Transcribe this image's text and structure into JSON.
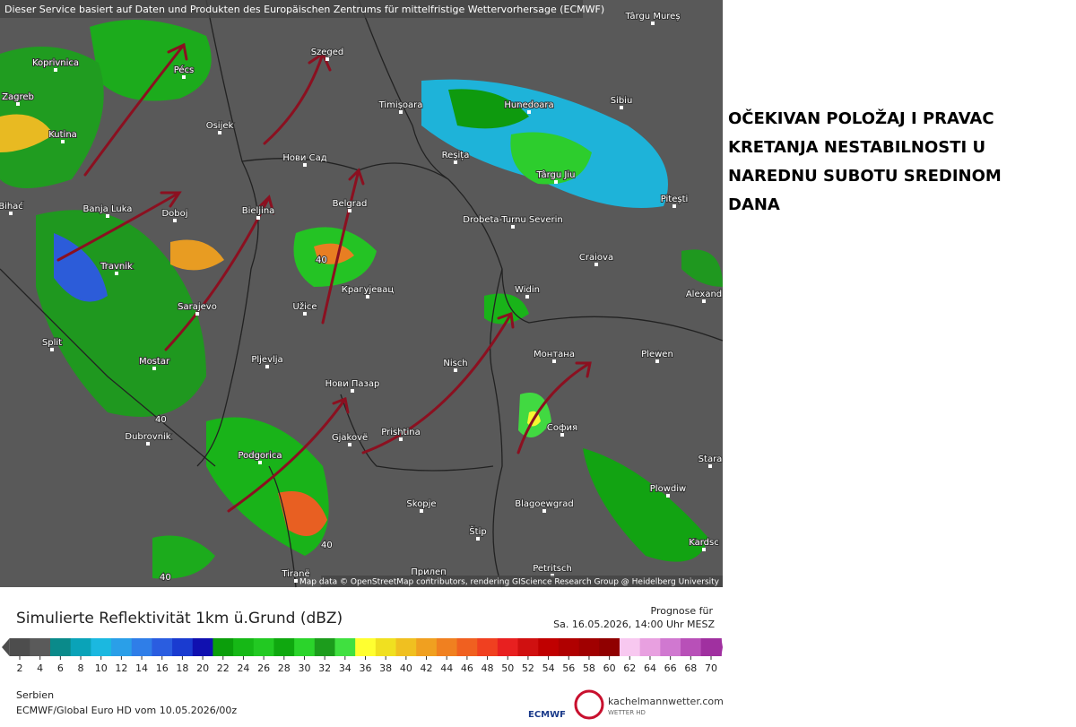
{
  "header": {
    "notice": "Dieser Service basiert auf Daten und Produkten des Europäischen Zentrums für mittelfristige Wettervorhersage (ECMWF)",
    "attribution": "Map data © OpenStreetMap contributors, rendering GIScience Research Group @ Heidelberg University"
  },
  "map": {
    "cities": [
      "Târgu Mureș",
      "Koprivnica",
      "Pécs",
      "Szeged",
      "Zagreb",
      "Timișoara",
      "Hunedoara",
      "Sibiu",
      "Kutina",
      "Osijek",
      "Нови Сад",
      "Reșița",
      "Târgu Jiu",
      "Pitești",
      "Bihać",
      "Banja Luka",
      "Doboj",
      "Bieljina",
      "Belgrad",
      "Drobeta-Turnu Severin",
      "Craiova",
      "Travnik",
      "Крагујевац",
      "Widin",
      "Alexand",
      "Sarajevo",
      "Užice",
      "Split",
      "Mostar",
      "Pljevlja",
      "Nisch",
      "Монтана",
      "Plewen",
      "Нови Пазар",
      "Dubrovnik",
      "Prishtina",
      "София",
      "Podgorica",
      "Gjakovë",
      "Stara",
      "Plowdiw",
      "Skopje",
      "Blagoewgrad",
      "Štip",
      "Kardsc",
      "Tiranë",
      "Прилеп",
      "Petritsch"
    ],
    "contour_labels": [
      40,
      40,
      40,
      40
    ]
  },
  "annotation": [
    "OČEKIVAN POLOŽAJ I PRAVAC",
    "KRETANJA NESTABILNOSTI U",
    "NAREDNU SUBOTU SREDINOM",
    "DANA"
  ],
  "legend": {
    "title": "Simulierte Reflektivität 1km ü.Grund (dBZ)",
    "forecast_label": "Prognose für",
    "forecast_time": "Sa. 16.05.2026, 14:00 Uhr MESZ",
    "ticks": [
      2,
      4,
      6,
      8,
      10,
      12,
      14,
      16,
      18,
      20,
      22,
      24,
      26,
      28,
      30,
      32,
      34,
      36,
      38,
      40,
      42,
      44,
      46,
      48,
      50,
      52,
      54,
      56,
      58,
      60,
      62,
      64,
      66,
      68,
      70
    ],
    "colors": [
      "#4d4d4d",
      "#5a5a5a",
      "#0a8a8a",
      "#0aa3b8",
      "#1bb8e0",
      "#2a9fe8",
      "#2f7ee8",
      "#2a5de0",
      "#1a3bd0",
      "#1010b0",
      "#0b9e0b",
      "#16b816",
      "#22c922",
      "#0fa80f",
      "#2bd42b",
      "#1c9c1c",
      "#40e040",
      "#ffff30",
      "#f0e020",
      "#f0c020",
      "#f0a020",
      "#f08020",
      "#f06020",
      "#f04020",
      "#e82020",
      "#d01010",
      "#c00000",
      "#b00000",
      "#a00000",
      "#900000",
      "#f8c8f0",
      "#e8a0e0",
      "#d078d0",
      "#b850b8",
      "#a030a0"
    ],
    "region": "Serbien",
    "model": "ECMWF/Global Euro HD vom  10.05.2026/00z",
    "logo_ecmwf": "ECMWF",
    "logo_site": "kachelmannwetter.com",
    "logo_sub": "WETTER HD"
  }
}
